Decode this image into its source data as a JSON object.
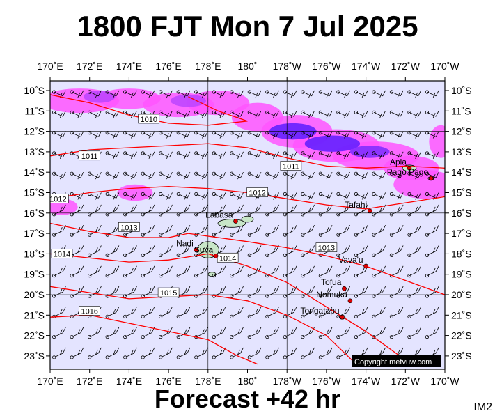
{
  "title": "1800 FJT Mon 7 Jul 2025",
  "footer": "Forecast +42 hr",
  "corner_label": "IM2",
  "copyright": "Copyright metvuw.com",
  "colors": {
    "ocean": "#e4e4ff",
    "isobar": "#ff0000",
    "rain_light": "#ff55ff",
    "rain_heavy": "#5a1cff",
    "land": "#c8e6c8"
  },
  "axes": {
    "lon_labels": [
      "170˚E",
      "172˚E",
      "174˚E",
      "176˚E",
      "178˚E",
      "180˚",
      "178˚W",
      "176˚W",
      "174˚W",
      "172˚W",
      "170˚W"
    ],
    "lat_labels": [
      "10˚S",
      "11˚S",
      "12˚S",
      "13˚S",
      "14˚S",
      "15˚S",
      "16˚S",
      "17˚S",
      "18˚S",
      "19˚S",
      "20˚S",
      "21˚S",
      "22˚S",
      "23˚S"
    ]
  },
  "isobars": [
    {
      "label": "1010",
      "points": [
        [
          -10.2,
          170
        ],
        [
          -10.6,
          172
        ],
        [
          -11.2,
          174
        ],
        [
          -11.6,
          176
        ],
        [
          -11.7,
          178
        ],
        [
          -11.5,
          180
        ],
        [
          -11.0,
          178.5
        ],
        [
          -10.3,
          177
        ]
      ],
      "label_at": [
        -11.4,
        175
      ]
    },
    {
      "label": "1011",
      "points": [
        [
          -13.2,
          170
        ],
        [
          -12.9,
          172
        ],
        [
          -12.8,
          174
        ],
        [
          -12.7,
          176
        ],
        [
          -12.6,
          178
        ],
        [
          -12.8,
          180
        ],
        [
          -13.3,
          182
        ],
        [
          -13.7,
          184
        ],
        [
          -13.8,
          186
        ],
        [
          -13.7,
          188
        ],
        [
          -13.8,
          190
        ]
      ],
      "label_at": [
        -13.7,
        182.2
      ],
      "label2_at": [
        -13.2,
        172
      ]
    },
    {
      "label": "1012",
      "points": [
        [
          -15.3,
          170
        ],
        [
          -15.0,
          172
        ],
        [
          -14.8,
          174
        ],
        [
          -14.7,
          176
        ],
        [
          -14.8,
          178
        ],
        [
          -15.0,
          180
        ],
        [
          -15.3,
          182
        ],
        [
          -15.6,
          184
        ],
        [
          -15.8,
          186
        ],
        [
          -15.5,
          188
        ],
        [
          -15.2,
          190
        ]
      ],
      "label_at": [
        -15.0,
        180.5
      ],
      "label2_at": [
        -15.3,
        170.4
      ]
    },
    {
      "label": "1013",
      "points": [
        [
          -16.5,
          170
        ],
        [
          -16.9,
          172
        ],
        [
          -17.2,
          174
        ],
        [
          -17.2,
          176
        ],
        [
          -17.0,
          177
        ],
        [
          -17.4,
          180
        ],
        [
          -17.7,
          182
        ],
        [
          -18.1,
          184
        ],
        [
          -18.6,
          186
        ],
        [
          -19.3,
          188
        ],
        [
          -20.0,
          190
        ]
      ],
      "label_at": [
        -17.7,
        184
      ],
      "label2_at": [
        -16.7,
        174
      ]
    },
    {
      "label": "1014",
      "points": [
        [
          -18.0,
          170
        ],
        [
          -18.2,
          172
        ],
        [
          -18.4,
          174
        ],
        [
          -18.3,
          176
        ],
        [
          -18.0,
          178
        ],
        [
          -18.6,
          180
        ],
        [
          -19.4,
          182
        ],
        [
          -20.6,
          184
        ],
        [
          -21.8,
          186
        ],
        [
          -23.2,
          188
        ]
      ],
      "label_at": [
        -18.2,
        179
      ],
      "label2_at": [
        -18.0,
        170.6
      ]
    },
    {
      "label": "1015",
      "points": [
        [
          -19.6,
          170
        ],
        [
          -19.9,
          172
        ],
        [
          -20.2,
          174
        ],
        [
          -20.1,
          176
        ],
        [
          -20.0,
          178
        ],
        [
          -20.3,
          180
        ],
        [
          -21.0,
          182
        ],
        [
          -22.0,
          184
        ],
        [
          -23.4,
          185.5
        ]
      ],
      "label_at": [
        -19.9,
        176
      ]
    },
    {
      "label": "1016",
      "points": [
        [
          -21.1,
          170
        ],
        [
          -21.0,
          172
        ],
        [
          -21.4,
          174
        ],
        [
          -21.8,
          176
        ],
        [
          -22.2,
          178
        ],
        [
          -23.0,
          179.5
        ],
        [
          -23.4,
          180.5
        ]
      ],
      "label_at": [
        -20.8,
        172
      ]
    }
  ],
  "places": [
    {
      "name": "Apia",
      "lat": -13.8,
      "lon": 188.2
    },
    {
      "name": "Pago Pago",
      "lat": -14.3,
      "lon": 189.3
    },
    {
      "name": "Tafahi",
      "lat": -15.9,
      "lon": 186.2
    },
    {
      "name": "Labasa",
      "lat": -16.4,
      "lon": 179.4
    },
    {
      "name": "Nadi",
      "lat": -17.8,
      "lon": 177.4
    },
    {
      "name": "Suva",
      "lat": -18.1,
      "lon": 178.4
    },
    {
      "name": "Vava'u",
      "lat": -18.6,
      "lon": 186.0
    },
    {
      "name": "Tofua",
      "lat": -19.7,
      "lon": 184.9
    },
    {
      "name": "Nomuka",
      "lat": -20.3,
      "lon": 185.2
    },
    {
      "name": "Tongatapu",
      "lat": -21.1,
      "lon": 184.8
    }
  ]
}
